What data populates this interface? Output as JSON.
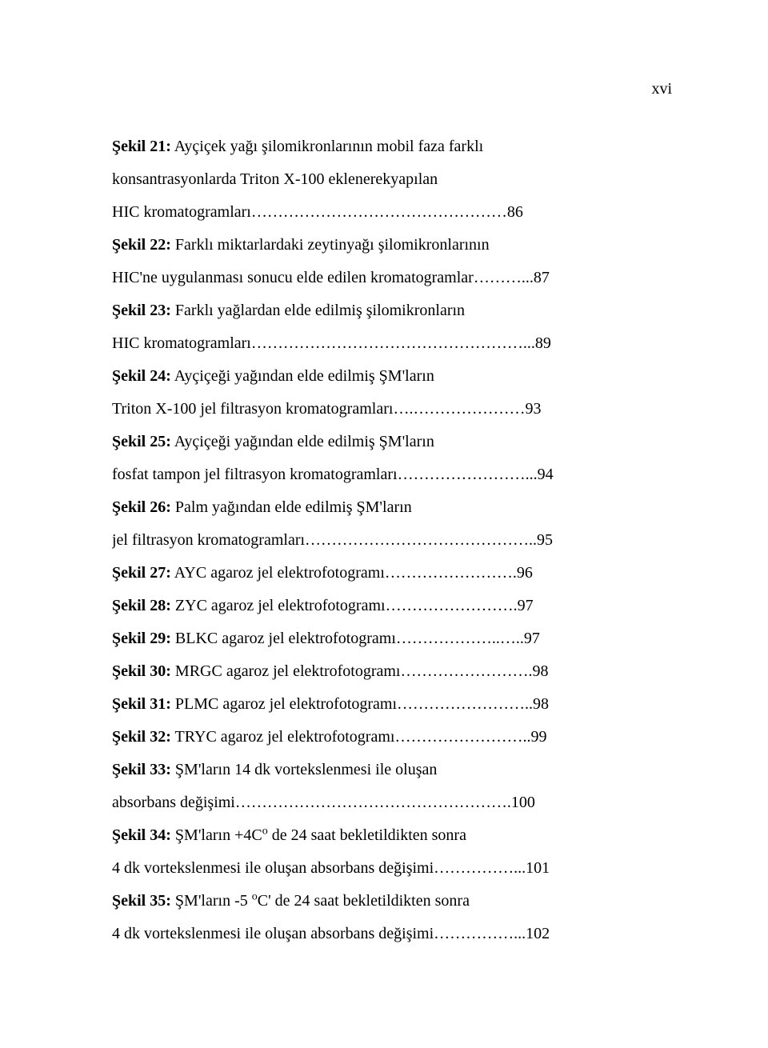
{
  "pageNumber": "xvi",
  "entries": [
    {
      "label": "Şekil 21:",
      "text": " Ayçiçek yağı şilomikronlarının mobil faza farklı",
      "leader": "",
      "page": ""
    },
    {
      "label": "",
      "text": "konsantrasyonlarda Triton X-100 eklenerekyapılan",
      "leader": "",
      "page": ""
    },
    {
      "label": "",
      "text": "HIC kromatogramları",
      "leader": "…………………………………………",
      "page": "86"
    },
    {
      "label": "Şekil 22:",
      "text": " Farklı miktarlardaki zeytinyağı şilomikronlarının",
      "leader": "",
      "page": ""
    },
    {
      "label": "",
      "text": "HIC'ne uygulanması sonucu elde edilen kromatogramlar",
      "leader": "………...",
      "page": "87"
    },
    {
      "label": "Şekil 23:",
      "text": " Farklı yağlardan elde edilmiş şilomikronların",
      "leader": "",
      "page": ""
    },
    {
      "label": "",
      "text": " HIC kromatogramları",
      "leader": "……………………………………………...",
      "page": "89"
    },
    {
      "label": "Şekil 24:",
      "text": " Ayçiçeği yağından elde edilmiş ŞM'ların",
      "leader": "",
      "page": ""
    },
    {
      "label": "",
      "text": "Triton X-100 jel filtrasyon kromatogramları",
      "leader": "….…………………",
      "page": "93"
    },
    {
      "label": "Şekil 25:",
      "text": " Ayçiçeği yağından elde edilmiş ŞM'ların",
      "leader": "",
      "page": ""
    },
    {
      "label": "",
      "text": "fosfat tampon jel filtrasyon kromatogramları",
      "leader": "……………………...",
      "page": "94"
    },
    {
      "label": "Şekil 26:",
      "text": " Palm yağından elde edilmiş ŞM'ların",
      "leader": "",
      "page": ""
    },
    {
      "label": "",
      "text": "jel filtrasyon kromatogramları",
      "leader": "……………………………………..",
      "page": "95"
    },
    {
      "label": "Şekil 27:",
      "text": " AYC agaroz jel elektrofotogramı",
      "leader": "…………………….",
      "page": "96"
    },
    {
      "label": "Şekil 28:",
      "text": " ZYC agaroz jel elektrofotogramı",
      "leader": "…………………….",
      "page": "97"
    },
    {
      "label": "Şekil 29:",
      "text": " BLKC agaroz jel elektrofotogramı",
      "leader": "………………..…..",
      "page": "97"
    },
    {
      "label": "Şekil 30:",
      "text": " MRGC agaroz jel elektrofotogramı",
      "leader": "…………………….",
      "page": "98"
    },
    {
      "label": "Şekil 31:",
      "text": " PLMC agaroz jel elektrofotogramı",
      "leader": "……………………..",
      "page": "98"
    },
    {
      "label": "Şekil 32:",
      "text": " TRYC agaroz jel elektrofotogramı",
      "leader": "……………………..",
      "page": "99"
    },
    {
      "label": "Şekil 33:",
      "text": " ŞM'ların 14 dk vortekslenmesi ile oluşan",
      "leader": "",
      "page": ""
    },
    {
      "label": "",
      "text": "absorbans değişimi",
      "leader": "…………………………………………….",
      "page": "100"
    },
    {
      "label": "Şekil 34:",
      "text": " ŞM'ların +4C",
      "sup": "o",
      "textAfter": " de 24 saat bekletildikten sonra",
      "leader": "",
      "page": ""
    },
    {
      "label": "",
      "text": "4 dk vortekslenmesi ile oluşan  absorbans değişimi",
      "leader": "……………...",
      "page": "101"
    },
    {
      "label": "Şekil 35:",
      "text": " ŞM'ların -5 ",
      "sup": "o",
      "textAfter": "C' de 24 saat bekletildikten sonra",
      "leader": "",
      "page": ""
    },
    {
      "label": "",
      "text": "4 dk vortekslenmesi ile oluşan  absorbans değişimi",
      "leader": "……………...",
      "page": "102"
    }
  ]
}
